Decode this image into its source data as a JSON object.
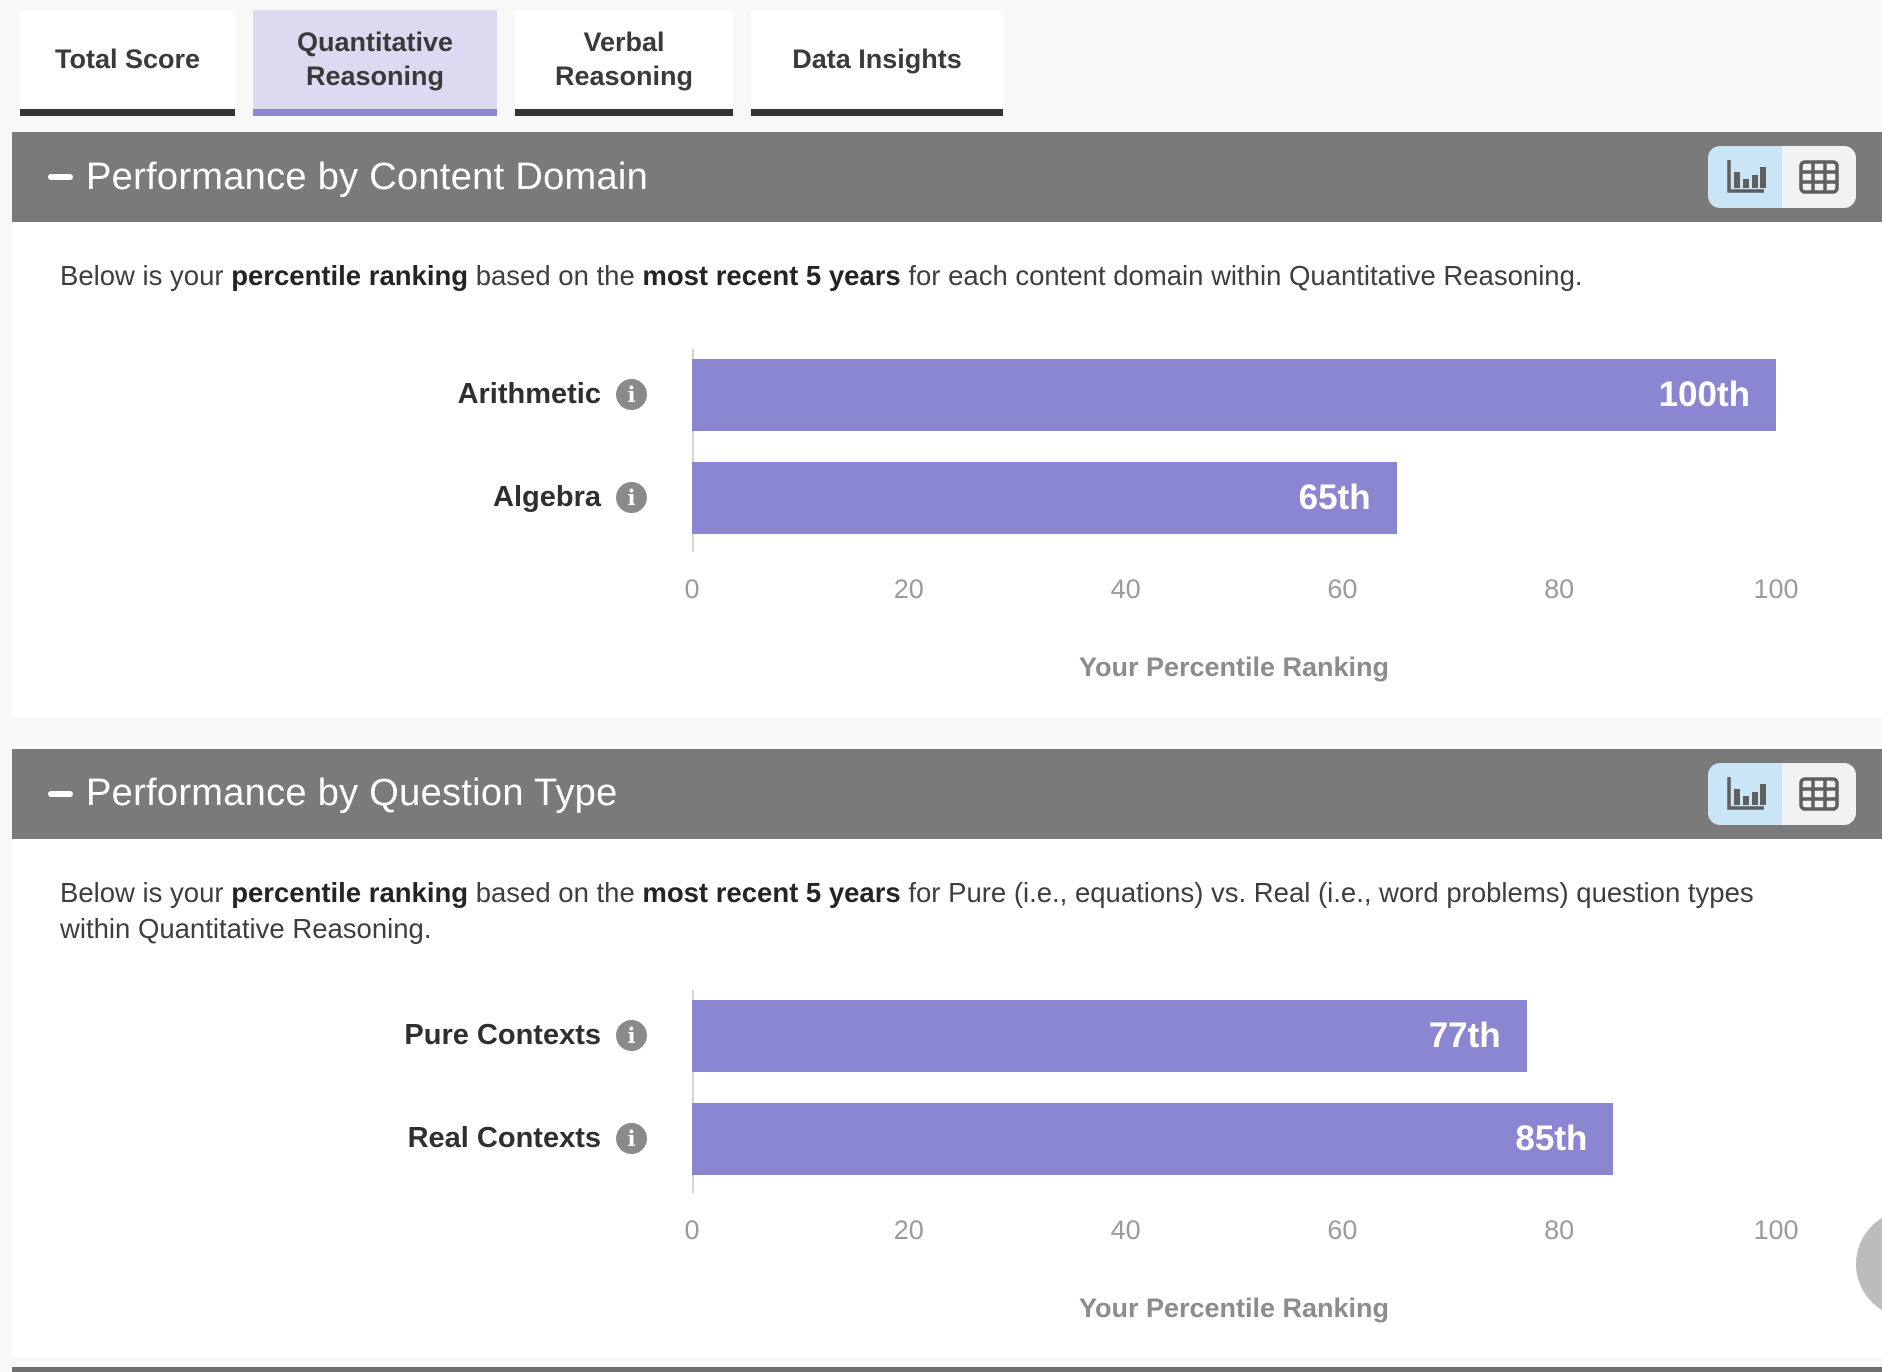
{
  "icons": {
    "info_glyph": "i"
  },
  "tabs": [
    {
      "label": "Total Score",
      "selected": false
    },
    {
      "label": "Quantitative Reasoning",
      "selected": true
    },
    {
      "label": "Verbal Reasoning",
      "selected": false
    },
    {
      "label": "Data Insights",
      "selected": false
    }
  ],
  "sections": [
    {
      "title": "Performance by Content Domain",
      "description": {
        "p1": "Below is your ",
        "b1": "percentile ranking",
        "p2": " based on the ",
        "b2": "most recent 5 years",
        "p3": " for each content domain within Quantitative Reasoning."
      },
      "chart_data": {
        "type": "bar",
        "orientation": "horizontal",
        "categories": [
          "Arithmetic",
          "Algebra"
        ],
        "values": [
          100,
          65
        ],
        "value_labels": [
          "100th",
          "65th"
        ],
        "xlabel": "Your Percentile Ranking",
        "xlim": [
          0,
          100
        ],
        "xticks": [
          0,
          20,
          40,
          60,
          80,
          100
        ],
        "bar_color": "#8b86d2",
        "grid": false,
        "legend": false
      }
    },
    {
      "title": "Performance by Question Type",
      "description": {
        "p1": "Below is your ",
        "b1": "percentile ranking",
        "p2": " based on the ",
        "b2": "most recent 5 years",
        "p3": " for Pure (i.e., equations) vs. Real (i.e., word problems) question types within Quantitative Reasoning."
      },
      "chart_data": {
        "type": "bar",
        "orientation": "horizontal",
        "categories": [
          "Pure Contexts",
          "Real Contexts"
        ],
        "values": [
          77,
          85
        ],
        "value_labels": [
          "77th",
          "85th"
        ],
        "xlabel": "Your Percentile Ranking",
        "xlim": [
          0,
          100
        ],
        "xticks": [
          0,
          20,
          40,
          60,
          80,
          100
        ],
        "bar_color": "#8b86d2",
        "grid": false,
        "legend": false
      }
    }
  ],
  "colors": {
    "accent_purple": "#8b86d2",
    "tab_selected_bg": "#dcd9f0",
    "tab_underline_dark": "#333333",
    "section_header_gray": "#7a7a7a",
    "toggle_active_blue": "#c9e5f6",
    "page_bg": "#f8f8f8",
    "bar_value_text": "#ffffff"
  }
}
